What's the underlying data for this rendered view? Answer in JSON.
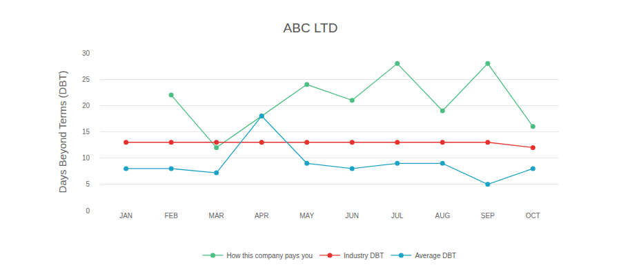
{
  "chart_data": {
    "type": "line",
    "title": "ABC LTD",
    "y_label": "Days Beyond Terms (DBT)",
    "categories": [
      "JAN",
      "FEB",
      "MAR",
      "APR",
      "MAY",
      "JUN",
      "JUL",
      "AUG",
      "SEP",
      "OCT"
    ],
    "series": [
      {
        "name": "How this company pays you",
        "color": "#4dbf82",
        "marker": "circle",
        "line_style": "solid",
        "values": [
          null,
          22,
          12,
          18,
          24,
          21,
          28,
          19,
          28,
          16
        ]
      },
      {
        "name": "Industry DBT",
        "color": "#e8322f",
        "marker": "circle",
        "line_style": "solid",
        "values": [
          13,
          13,
          13,
          13,
          13,
          13,
          13,
          13,
          13,
          12
        ]
      },
      {
        "name": "Average DBT",
        "color": "#1ba3c6",
        "marker": "circle",
        "line_style": "solid",
        "values": [
          8,
          8,
          7.2,
          18,
          9,
          8,
          9,
          9,
          5,
          8
        ]
      }
    ],
    "ylim": [
      0,
      30
    ],
    "yticks": [
      0,
      5,
      10,
      15,
      20,
      25,
      30
    ],
    "grid": true,
    "legend": "bottom"
  }
}
